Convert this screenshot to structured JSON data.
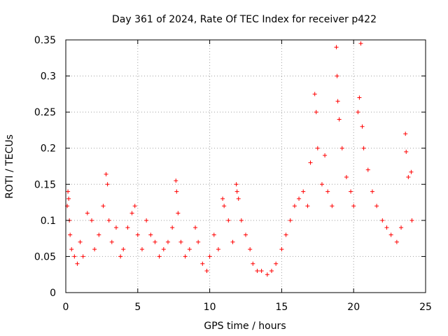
{
  "chart_data": {
    "type": "scatter",
    "title": "Day 361 of 2024, Rate Of TEC Index for receiver p422",
    "xlabel": "GPS time / hours",
    "ylabel": "ROTI / TECUs",
    "xlim": [
      0,
      25
    ],
    "ylim": [
      0,
      0.35
    ],
    "xticks": [
      0,
      5,
      10,
      15,
      20,
      25
    ],
    "xtick_labels": [
      "0",
      "5",
      "10",
      "15",
      "20",
      "25"
    ],
    "yticks": [
      0,
      0.05,
      0.1,
      0.15,
      0.2,
      0.25,
      0.3,
      0.35
    ],
    "ytick_labels": [
      "0",
      "0.05",
      "0.1",
      "0.15",
      "0.2",
      "0.25",
      "0.3",
      "0.35"
    ],
    "grid": true,
    "marker": "+",
    "series": [
      {
        "name": "ROTI",
        "color": "#ff0000",
        "points": [
          [
            0.1,
            0.12
          ],
          [
            0.15,
            0.14
          ],
          [
            0.2,
            0.13
          ],
          [
            0.25,
            0.1
          ],
          [
            0.3,
            0.08
          ],
          [
            0.4,
            0.06
          ],
          [
            0.6,
            0.05
          ],
          [
            0.8,
            0.04
          ],
          [
            1.0,
            0.07
          ],
          [
            1.2,
            0.05
          ],
          [
            1.5,
            0.11
          ],
          [
            1.8,
            0.1
          ],
          [
            2.0,
            0.06
          ],
          [
            2.3,
            0.08
          ],
          [
            2.6,
            0.12
          ],
          [
            2.8,
            0.164
          ],
          [
            2.9,
            0.15
          ],
          [
            3.0,
            0.1
          ],
          [
            3.2,
            0.07
          ],
          [
            3.5,
            0.09
          ],
          [
            3.8,
            0.05
          ],
          [
            4.0,
            0.06
          ],
          [
            4.3,
            0.09
          ],
          [
            4.6,
            0.11
          ],
          [
            4.8,
            0.12
          ],
          [
            5.0,
            0.08
          ],
          [
            5.3,
            0.06
          ],
          [
            5.6,
            0.1
          ],
          [
            5.9,
            0.08
          ],
          [
            6.2,
            0.07
          ],
          [
            6.5,
            0.05
          ],
          [
            6.8,
            0.06
          ],
          [
            7.1,
            0.07
          ],
          [
            7.4,
            0.09
          ],
          [
            7.65,
            0.155
          ],
          [
            7.7,
            0.14
          ],
          [
            7.8,
            0.11
          ],
          [
            8.0,
            0.07
          ],
          [
            8.3,
            0.05
          ],
          [
            8.6,
            0.06
          ],
          [
            9.0,
            0.09
          ],
          [
            9.2,
            0.07
          ],
          [
            9.5,
            0.04
          ],
          [
            9.8,
            0.03
          ],
          [
            10.0,
            0.05
          ],
          [
            10.3,
            0.08
          ],
          [
            10.6,
            0.06
          ],
          [
            10.9,
            0.13
          ],
          [
            11.0,
            0.12
          ],
          [
            11.3,
            0.1
          ],
          [
            11.6,
            0.07
          ],
          [
            11.85,
            0.15
          ],
          [
            11.9,
            0.14
          ],
          [
            12.0,
            0.13
          ],
          [
            12.2,
            0.1
          ],
          [
            12.5,
            0.08
          ],
          [
            12.8,
            0.06
          ],
          [
            13.0,
            0.04
          ],
          [
            13.3,
            0.03
          ],
          [
            13.6,
            0.03
          ],
          [
            14.0,
            0.025
          ],
          [
            14.3,
            0.03
          ],
          [
            14.6,
            0.04
          ],
          [
            15.0,
            0.06
          ],
          [
            15.3,
            0.08
          ],
          [
            15.6,
            0.1
          ],
          [
            15.9,
            0.12
          ],
          [
            16.2,
            0.13
          ],
          [
            16.5,
            0.14
          ],
          [
            16.8,
            0.12
          ],
          [
            17.0,
            0.18
          ],
          [
            17.3,
            0.275
          ],
          [
            17.4,
            0.25
          ],
          [
            17.5,
            0.2
          ],
          [
            17.8,
            0.15
          ],
          [
            18.0,
            0.19
          ],
          [
            18.2,
            0.14
          ],
          [
            18.5,
            0.12
          ],
          [
            18.8,
            0.34
          ],
          [
            18.85,
            0.3
          ],
          [
            18.9,
            0.265
          ],
          [
            19.0,
            0.24
          ],
          [
            19.2,
            0.2
          ],
          [
            19.5,
            0.16
          ],
          [
            19.8,
            0.14
          ],
          [
            20.0,
            0.12
          ],
          [
            20.3,
            0.25
          ],
          [
            20.4,
            0.27
          ],
          [
            20.5,
            0.345
          ],
          [
            20.6,
            0.23
          ],
          [
            20.7,
            0.2
          ],
          [
            21.0,
            0.17
          ],
          [
            21.3,
            0.14
          ],
          [
            21.6,
            0.12
          ],
          [
            22.0,
            0.1
          ],
          [
            22.3,
            0.09
          ],
          [
            22.6,
            0.08
          ],
          [
            23.0,
            0.07
          ],
          [
            23.3,
            0.09
          ],
          [
            23.6,
            0.22
          ],
          [
            23.65,
            0.195
          ],
          [
            23.8,
            0.16
          ],
          [
            24.0,
            0.167
          ],
          [
            24.05,
            0.1
          ]
        ]
      }
    ]
  }
}
